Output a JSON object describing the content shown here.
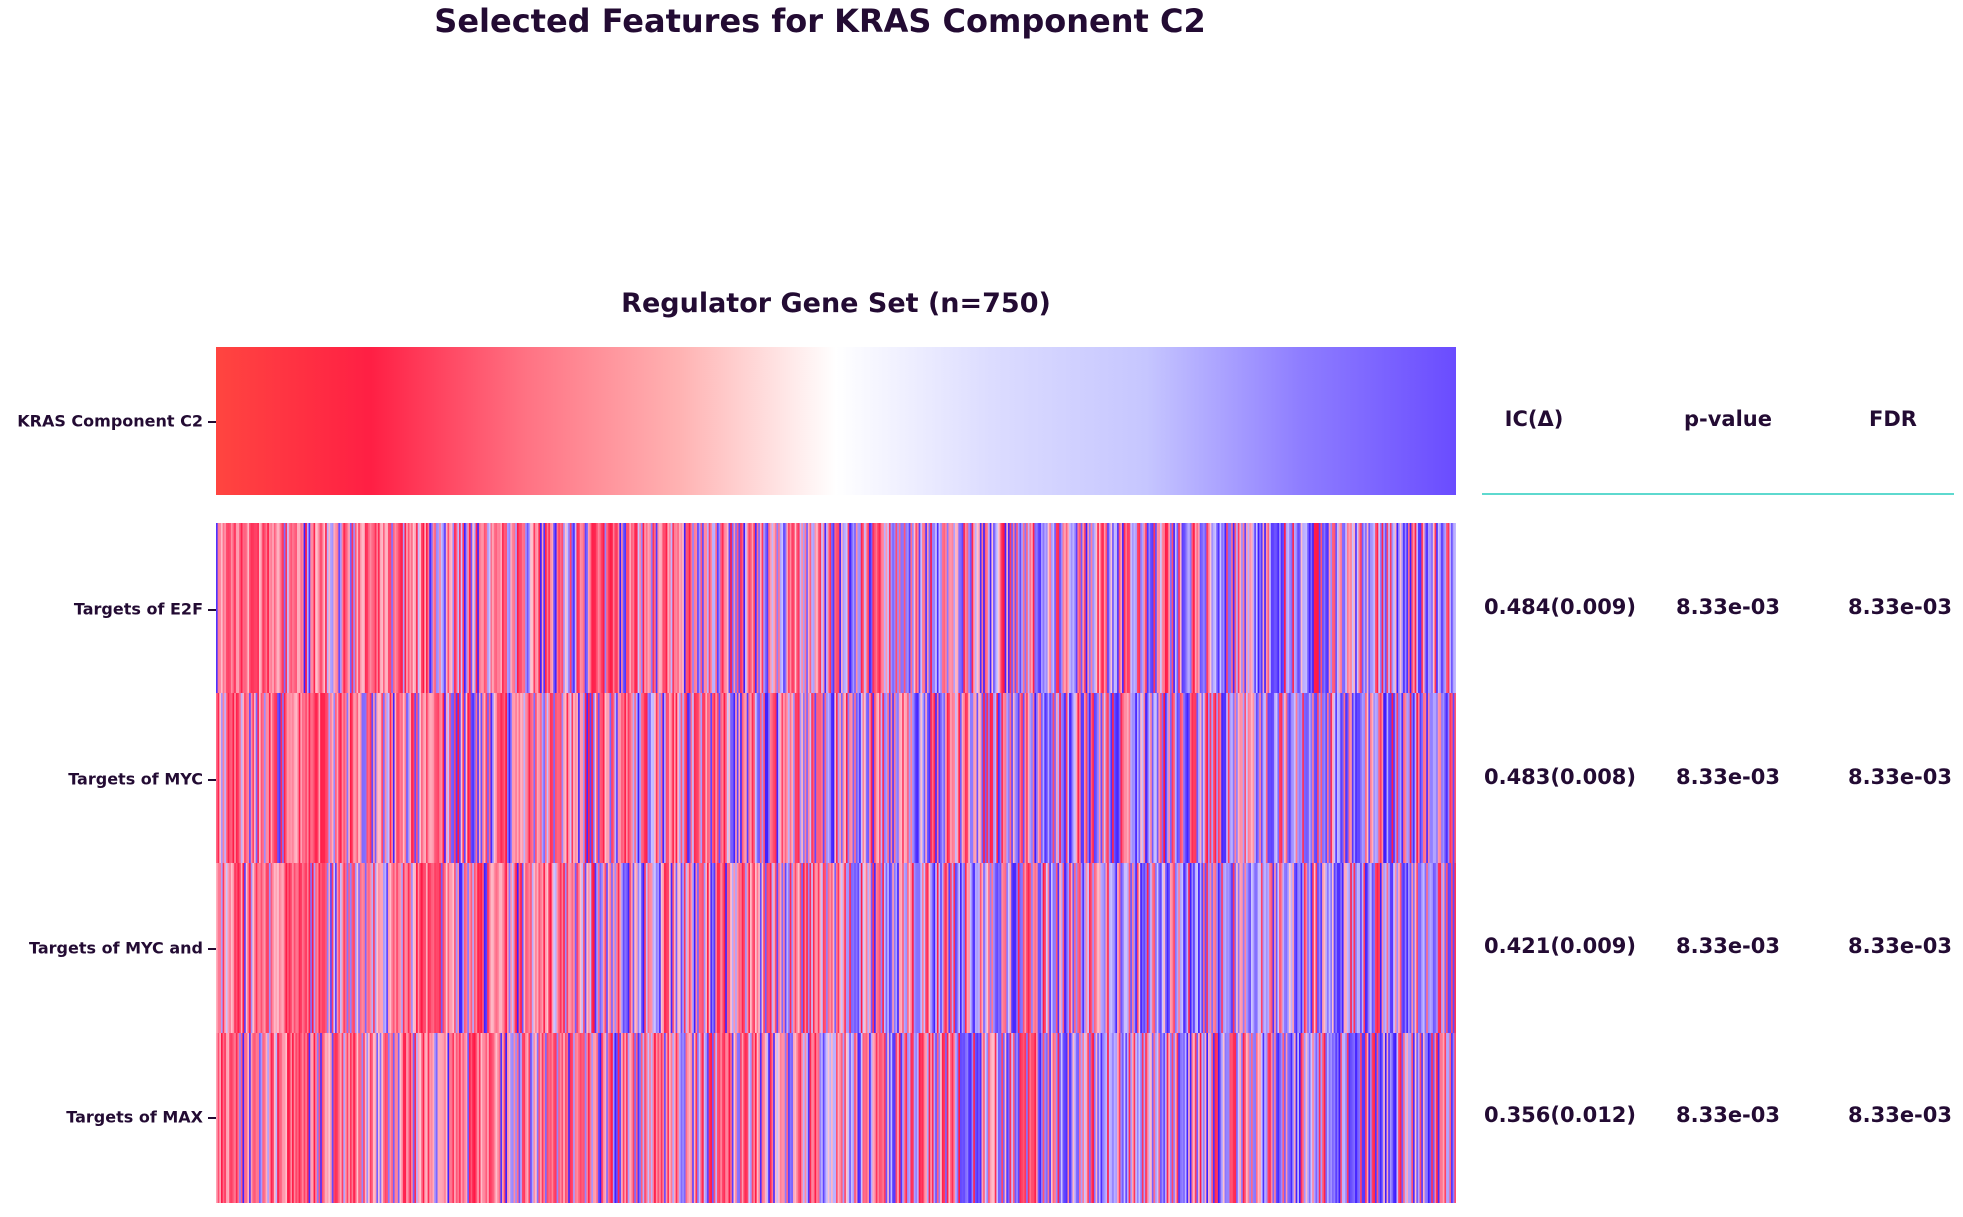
{
  "chart_data": {
    "type": "heatmap",
    "title": "Selected Features for KRAS Component C2",
    "subtitle": "Regulator Gene Set (n=750)",
    "colors": {
      "low": "#ff1744",
      "mid": "#ffffff",
      "high": "#6a4cff",
      "deep_blue": "#3d1bff"
    },
    "target": {
      "label": "KRAS Component C2",
      "gradient_stops": [
        "#ff4540",
        "#ff1f44",
        "#ff7283",
        "#ffb3b3",
        "#ffffff",
        "#dcdcff",
        "#c6c6ff",
        "#8e7dff",
        "#6a4cff"
      ]
    },
    "features": [
      {
        "label": "Targets of E2F",
        "ic": "0.484(0.009)",
        "pvalue": "8.33e-03",
        "fdr": "8.33e-03"
      },
      {
        "label": "Targets of MYC",
        "ic": "0.483(0.008)",
        "pvalue": "8.33e-03",
        "fdr": "8.33e-03"
      },
      {
        "label": "Targets of MYC and",
        "ic": "0.421(0.009)",
        "pvalue": "8.33e-03",
        "fdr": "8.33e-03"
      },
      {
        "label": "Targets of MAX",
        "ic": "0.356(0.012)",
        "pvalue": "8.33e-03",
        "fdr": "8.33e-03"
      }
    ],
    "columns": {
      "ic": "IC(Δ)",
      "pvalue": "p-value",
      "fdr": "FDR"
    },
    "n_samples": 750
  }
}
